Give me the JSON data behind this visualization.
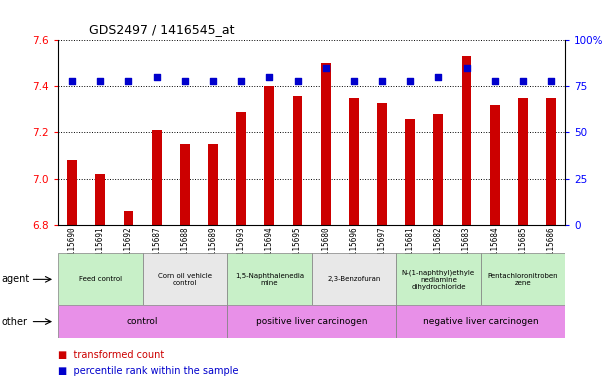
{
  "title": "GDS2497 / 1416545_at",
  "categories": [
    "GSM115690",
    "GSM115691",
    "GSM115692",
    "GSM115687",
    "GSM115688",
    "GSM115689",
    "GSM115693",
    "GSM115694",
    "GSM115695",
    "GSM115680",
    "GSM115696",
    "GSM115697",
    "GSM115681",
    "GSM115682",
    "GSM115683",
    "GSM115684",
    "GSM115685",
    "GSM115686"
  ],
  "bar_values": [
    7.08,
    7.02,
    6.86,
    7.21,
    7.15,
    7.15,
    7.29,
    7.4,
    7.36,
    7.5,
    7.35,
    7.33,
    7.26,
    7.28,
    7.53,
    7.32,
    7.35,
    7.35
  ],
  "percentile_values": [
    78,
    78,
    78,
    80,
    78,
    78,
    78,
    80,
    78,
    85,
    78,
    78,
    78,
    80,
    85,
    78,
    78,
    78
  ],
  "ylim_left": [
    6.8,
    7.6
  ],
  "ylim_right": [
    0,
    100
  ],
  "yticks_left": [
    6.8,
    7.0,
    7.2,
    7.4,
    7.6
  ],
  "yticks_right": [
    0,
    25,
    50,
    75,
    100
  ],
  "bar_color": "#cc0000",
  "percentile_color": "#0000cc",
  "plot_bg": "#ffffff",
  "tick_bg": "#d8d8d8",
  "agent_groups": [
    {
      "label": "Feed control",
      "start": 0,
      "end": 3,
      "color": "#c8f0c8"
    },
    {
      "label": "Corn oil vehicle\ncontrol",
      "start": 3,
      "end": 6,
      "color": "#e8e8e8"
    },
    {
      "label": "1,5-Naphthalenedia\nmine",
      "start": 6,
      "end": 9,
      "color": "#c8f0c8"
    },
    {
      "label": "2,3-Benzofuran",
      "start": 9,
      "end": 12,
      "color": "#e8e8e8"
    },
    {
      "label": "N-(1-naphthyl)ethyle\nnediamine\ndihydrochloride",
      "start": 12,
      "end": 15,
      "color": "#c8f0c8"
    },
    {
      "label": "Pentachloronitroben\nzene",
      "start": 15,
      "end": 18,
      "color": "#c8f0c8"
    }
  ],
  "other_groups": [
    {
      "label": "control",
      "start": 0,
      "end": 6
    },
    {
      "label": "positive liver carcinogen",
      "start": 6,
      "end": 12
    },
    {
      "label": "negative liver carcinogen",
      "start": 12,
      "end": 18
    }
  ],
  "other_color": "#e890e8",
  "legend_items": [
    {
      "label": "transformed count",
      "color": "#cc0000"
    },
    {
      "label": "percentile rank within the sample",
      "color": "#0000cc"
    }
  ]
}
